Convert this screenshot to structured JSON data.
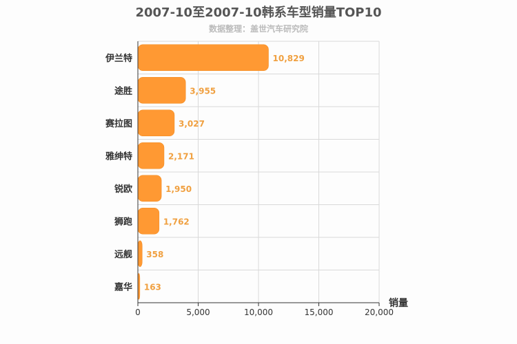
{
  "chart_data": {
    "type": "bar",
    "orientation": "horizontal",
    "title": "2007-10至2007-10韩系车型销量TOP10",
    "subtitle": "数据整理：盖世汽车研究院",
    "categories": [
      "伊兰特",
      "途胜",
      "赛拉图",
      "雅绅特",
      "锐欧",
      "狮跑",
      "远舰",
      "嘉华"
    ],
    "values": [
      10829,
      3955,
      3027,
      2171,
      1950,
      1762,
      358,
      163
    ],
    "value_labels": [
      "10,829",
      "3,955",
      "3,027",
      "2,171",
      "1,950",
      "1,762",
      "358",
      "163"
    ],
    "xlim": [
      0,
      20000
    ],
    "xticks": [
      "0",
      "5,000",
      "10,000",
      "15,000",
      "20,000"
    ],
    "xtick_values": [
      0,
      5000,
      10000,
      15000,
      20000
    ],
    "xlabel": "销量",
    "grid": true,
    "bar_color": "#ff9933",
    "label_color": "#f0a040"
  }
}
